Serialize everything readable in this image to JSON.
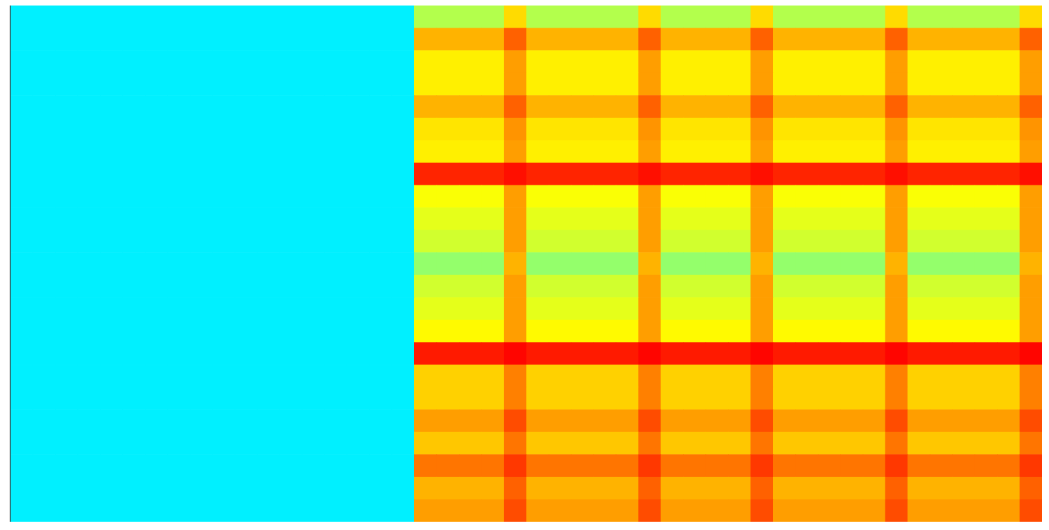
{
  "chart_data": {
    "type": "heatmap",
    "tick_labels": false,
    "zlim": [
      0,
      100
    ],
    "z": [
      [
        36,
        36,
        36,
        36,
        36,
        36,
        36,
        36,
        36,
        36,
        36,
        36,
        36,
        36,
        36,
        36,
        36,
        36,
        55,
        55,
        55,
        55,
        66,
        55,
        55,
        55,
        55,
        55,
        66,
        55,
        55,
        55,
        55,
        66,
        55,
        55,
        55,
        55,
        55,
        66,
        55,
        55,
        55,
        55,
        55,
        66
      ],
      [
        36,
        36,
        36,
        36,
        36,
        36,
        36,
        36,
        36,
        36,
        36,
        36,
        36,
        36,
        36,
        36,
        36,
        36,
        70,
        70,
        70,
        70,
        78,
        70,
        70,
        70,
        70,
        70,
        78,
        70,
        70,
        70,
        70,
        78,
        70,
        70,
        70,
        70,
        70,
        78,
        70,
        70,
        70,
        70,
        70,
        78
      ],
      [
        36,
        36,
        36,
        36,
        36,
        36,
        36,
        36,
        36,
        36,
        36,
        36,
        36,
        36,
        36,
        36,
        36,
        36,
        64,
        64,
        64,
        64,
        72,
        64,
        64,
        64,
        64,
        64,
        72,
        64,
        64,
        64,
        64,
        72,
        64,
        64,
        64,
        64,
        64,
        72,
        64,
        64,
        64,
        64,
        64,
        72
      ],
      [
        36,
        36,
        36,
        36,
        36,
        36,
        36,
        36,
        36,
        36,
        36,
        36,
        36,
        36,
        36,
        36,
        36,
        36,
        64,
        64,
        64,
        64,
        72,
        64,
        64,
        64,
        64,
        64,
        72,
        64,
        64,
        64,
        64,
        72,
        64,
        64,
        64,
        64,
        64,
        72,
        64,
        64,
        64,
        64,
        64,
        72
      ],
      [
        36,
        36,
        36,
        36,
        36,
        36,
        36,
        36,
        36,
        36,
        36,
        36,
        36,
        36,
        36,
        36,
        36,
        36,
        70,
        70,
        70,
        70,
        78,
        70,
        70,
        70,
        70,
        70,
        78,
        70,
        70,
        70,
        70,
        78,
        70,
        70,
        70,
        70,
        70,
        78,
        70,
        70,
        70,
        70,
        70,
        78
      ],
      [
        36,
        36,
        36,
        36,
        36,
        36,
        36,
        36,
        36,
        36,
        36,
        36,
        36,
        36,
        36,
        36,
        36,
        36,
        65,
        65,
        65,
        65,
        73,
        65,
        65,
        65,
        65,
        65,
        73,
        65,
        65,
        65,
        65,
        73,
        65,
        65,
        65,
        65,
        65,
        73,
        65,
        65,
        65,
        65,
        65,
        73
      ],
      [
        36,
        36,
        36,
        36,
        36,
        36,
        36,
        36,
        36,
        36,
        36,
        36,
        36,
        36,
        36,
        36,
        36,
        36,
        64,
        64,
        64,
        64,
        72,
        64,
        64,
        64,
        64,
        64,
        72,
        64,
        64,
        64,
        64,
        72,
        64,
        64,
        64,
        64,
        64,
        72,
        64,
        64,
        64,
        64,
        64,
        72
      ],
      [
        36,
        36,
        36,
        36,
        36,
        36,
        36,
        36,
        36,
        36,
        36,
        36,
        36,
        36,
        36,
        36,
        36,
        36,
        84,
        84,
        84,
        84,
        86,
        84,
        84,
        84,
        84,
        84,
        86,
        84,
        84,
        84,
        84,
        86,
        84,
        84,
        84,
        84,
        84,
        86,
        84,
        84,
        84,
        84,
        84,
        86
      ],
      [
        36,
        36,
        36,
        36,
        36,
        36,
        36,
        36,
        36,
        36,
        36,
        36,
        36,
        36,
        36,
        36,
        36,
        36,
        62,
        62,
        62,
        62,
        72,
        62,
        62,
        62,
        62,
        62,
        72,
        62,
        62,
        62,
        62,
        72,
        62,
        62,
        62,
        62,
        62,
        72,
        62,
        62,
        62,
        62,
        62,
        72
      ],
      [
        36,
        36,
        36,
        36,
        36,
        36,
        36,
        36,
        36,
        36,
        36,
        36,
        36,
        36,
        36,
        36,
        36,
        36,
        60,
        60,
        60,
        60,
        72,
        60,
        60,
        60,
        60,
        60,
        72,
        60,
        60,
        60,
        60,
        72,
        60,
        60,
        60,
        60,
        60,
        72,
        60,
        60,
        60,
        60,
        60,
        72
      ],
      [
        36,
        36,
        36,
        36,
        36,
        36,
        36,
        36,
        36,
        36,
        36,
        36,
        36,
        36,
        36,
        36,
        36,
        36,
        58,
        58,
        58,
        58,
        72,
        58,
        58,
        58,
        58,
        58,
        72,
        58,
        58,
        58,
        58,
        72,
        58,
        58,
        58,
        58,
        58,
        72,
        58,
        58,
        58,
        58,
        58,
        72
      ],
      [
        36,
        36,
        36,
        36,
        36,
        36,
        36,
        36,
        36,
        36,
        36,
        36,
        36,
        36,
        36,
        36,
        36,
        36,
        52,
        52,
        52,
        52,
        70,
        52,
        52,
        52,
        52,
        52,
        70,
        52,
        52,
        52,
        52,
        70,
        52,
        52,
        52,
        52,
        52,
        70,
        52,
        52,
        52,
        52,
        52,
        70
      ],
      [
        36,
        36,
        36,
        36,
        36,
        36,
        36,
        36,
        36,
        36,
        36,
        36,
        36,
        36,
        36,
        36,
        36,
        36,
        58,
        58,
        58,
        58,
        72,
        58,
        58,
        58,
        58,
        58,
        72,
        58,
        58,
        58,
        58,
        72,
        58,
        58,
        58,
        58,
        58,
        72,
        58,
        58,
        58,
        58,
        58,
        72
      ],
      [
        36,
        36,
        36,
        36,
        36,
        36,
        36,
        36,
        36,
        36,
        36,
        36,
        36,
        36,
        36,
        36,
        36,
        36,
        60,
        60,
        60,
        60,
        72,
        60,
        60,
        60,
        60,
        60,
        72,
        60,
        60,
        60,
        60,
        72,
        60,
        60,
        60,
        60,
        60,
        72,
        60,
        60,
        60,
        60,
        60,
        72
      ],
      [
        36,
        36,
        36,
        36,
        36,
        36,
        36,
        36,
        36,
        36,
        36,
        36,
        36,
        36,
        36,
        36,
        36,
        36,
        63,
        63,
        63,
        63,
        72,
        63,
        63,
        63,
        63,
        63,
        72,
        63,
        63,
        63,
        63,
        72,
        63,
        63,
        63,
        63,
        63,
        72,
        63,
        63,
        63,
        63,
        63,
        72
      ],
      [
        36,
        36,
        36,
        36,
        36,
        36,
        36,
        36,
        36,
        36,
        36,
        36,
        36,
        36,
        36,
        36,
        36,
        36,
        85,
        85,
        85,
        85,
        87,
        85,
        85,
        85,
        85,
        85,
        87,
        85,
        85,
        85,
        85,
        87,
        85,
        85,
        85,
        85,
        85,
        87,
        85,
        85,
        85,
        85,
        85,
        87
      ],
      [
        36,
        36,
        36,
        36,
        36,
        36,
        36,
        36,
        36,
        36,
        36,
        36,
        36,
        36,
        36,
        36,
        36,
        36,
        67,
        67,
        67,
        67,
        75,
        67,
        67,
        67,
        67,
        67,
        75,
        67,
        67,
        67,
        67,
        75,
        67,
        67,
        67,
        67,
        67,
        75,
        67,
        67,
        67,
        67,
        67,
        75
      ],
      [
        36,
        36,
        36,
        36,
        36,
        36,
        36,
        36,
        36,
        36,
        36,
        36,
        36,
        36,
        36,
        36,
        36,
        36,
        67,
        67,
        67,
        67,
        75,
        67,
        67,
        67,
        67,
        67,
        75,
        67,
        67,
        67,
        67,
        75,
        67,
        67,
        67,
        67,
        67,
        75,
        67,
        67,
        67,
        67,
        67,
        75
      ],
      [
        36,
        36,
        36,
        36,
        36,
        36,
        36,
        36,
        36,
        36,
        36,
        36,
        36,
        36,
        36,
        36,
        36,
        36,
        72,
        72,
        72,
        72,
        80,
        72,
        72,
        72,
        72,
        72,
        80,
        72,
        72,
        72,
        72,
        80,
        72,
        72,
        72,
        72,
        72,
        80,
        72,
        72,
        72,
        72,
        72,
        80
      ],
      [
        36,
        36,
        36,
        36,
        36,
        36,
        36,
        36,
        36,
        36,
        36,
        36,
        36,
        36,
        36,
        36,
        36,
        36,
        68,
        68,
        68,
        68,
        76,
        68,
        68,
        68,
        68,
        68,
        76,
        68,
        68,
        68,
        68,
        76,
        68,
        68,
        68,
        68,
        68,
        76,
        68,
        68,
        68,
        68,
        68,
        76
      ],
      [
        36,
        36,
        36,
        36,
        36,
        36,
        36,
        36,
        36,
        36,
        36,
        36,
        36,
        36,
        36,
        36,
        36,
        36,
        76,
        76,
        76,
        76,
        82,
        76,
        76,
        76,
        76,
        76,
        82,
        76,
        76,
        76,
        76,
        82,
        76,
        76,
        76,
        76,
        76,
        82,
        76,
        76,
        76,
        76,
        76,
        82
      ],
      [
        36,
        36,
        36,
        36,
        36,
        36,
        36,
        36,
        36,
        36,
        36,
        36,
        36,
        36,
        36,
        36,
        36,
        36,
        70,
        70,
        70,
        70,
        78,
        70,
        70,
        70,
        70,
        70,
        78,
        70,
        70,
        70,
        70,
        78,
        70,
        70,
        70,
        70,
        70,
        78,
        70,
        70,
        70,
        70,
        70,
        78
      ],
      [
        36,
        36,
        36,
        36,
        36,
        36,
        36,
        36,
        36,
        36,
        36,
        36,
        36,
        36,
        36,
        36,
        36,
        36,
        72,
        72,
        72,
        72,
        80,
        72,
        72,
        72,
        72,
        72,
        80,
        72,
        72,
        72,
        72,
        80,
        72,
        72,
        72,
        72,
        72,
        80,
        72,
        72,
        72,
        72,
        72,
        80
      ]
    ]
  }
}
